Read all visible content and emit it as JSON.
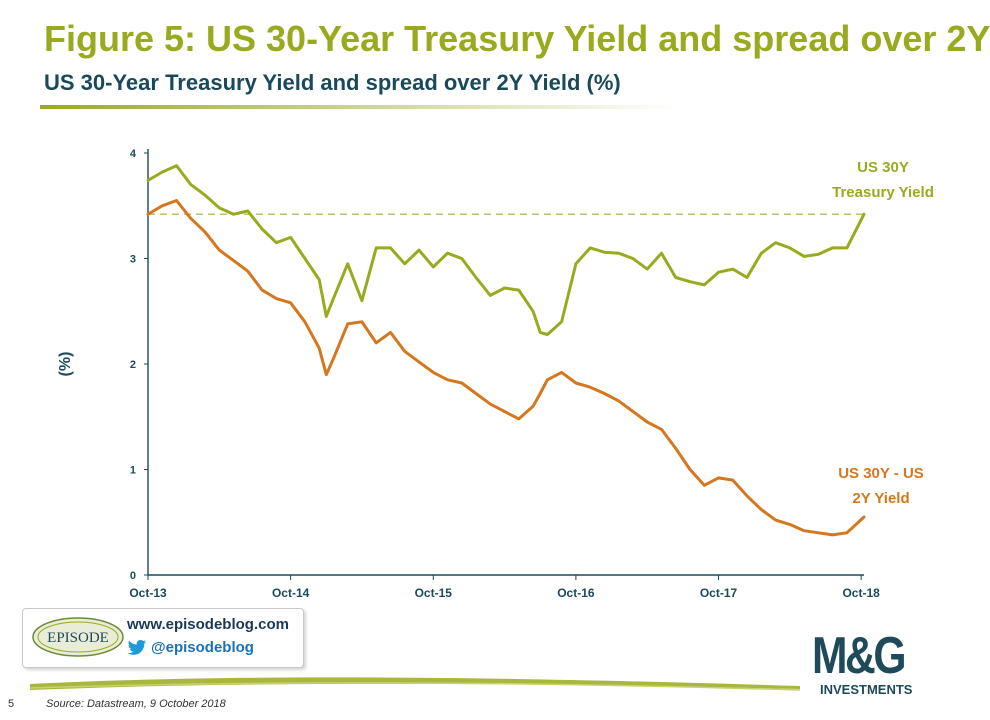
{
  "header": {
    "title": "Figure 5: US 30-Year Treasury Yield and spread over 2Y",
    "subtitle": "US 30-Year Treasury Yield and spread over 2Y Yield (%)"
  },
  "chart_data": {
    "type": "line",
    "ylabel": "(%)",
    "ylim": [
      0,
      4
    ],
    "yticks": [
      "0",
      "1",
      "2",
      "3",
      "4"
    ],
    "xticks": [
      "Oct-13",
      "Oct-14",
      "Oct-15",
      "Oct-16",
      "Oct-17",
      "Oct-18"
    ],
    "x": [
      2013.75,
      2013.85,
      2013.95,
      2014.05,
      2014.15,
      2014.25,
      2014.35,
      2014.45,
      2014.55,
      2014.65,
      2014.75,
      2014.85,
      2014.95,
      2015.0,
      2015.05,
      2015.15,
      2015.25,
      2015.35,
      2015.45,
      2015.55,
      2015.65,
      2015.75,
      2015.85,
      2015.95,
      2016.05,
      2016.15,
      2016.25,
      2016.35,
      2016.45,
      2016.5,
      2016.55,
      2016.65,
      2016.75,
      2016.85,
      2016.95,
      2017.05,
      2017.15,
      2017.25,
      2017.35,
      2017.45,
      2017.55,
      2017.65,
      2017.75,
      2017.85,
      2017.95,
      2018.05,
      2018.15,
      2018.25,
      2018.35,
      2018.45,
      2018.55,
      2018.65,
      2018.77
    ],
    "series": [
      {
        "name": "US 30Y Treasury Yield",
        "color": "#9aaa1f",
        "values": [
          3.74,
          3.82,
          3.88,
          3.7,
          3.6,
          3.48,
          3.42,
          3.45,
          3.28,
          3.15,
          3.2,
          3.0,
          2.8,
          2.45,
          2.62,
          2.95,
          2.6,
          3.1,
          3.1,
          2.95,
          3.08,
          2.92,
          3.05,
          3.0,
          2.82,
          2.65,
          2.72,
          2.7,
          2.5,
          2.3,
          2.28,
          2.4,
          2.95,
          3.1,
          3.06,
          3.05,
          3.0,
          2.9,
          3.05,
          2.82,
          2.78,
          2.75,
          2.87,
          2.9,
          2.82,
          3.05,
          3.15,
          3.1,
          3.02,
          3.04,
          3.1,
          3.1,
          3.42
        ]
      },
      {
        "name": "US 30Y - US 2Y Yield",
        "color": "#d4771f",
        "values": [
          3.42,
          3.5,
          3.55,
          3.38,
          3.25,
          3.08,
          2.98,
          2.88,
          2.7,
          2.62,
          2.58,
          2.4,
          2.15,
          1.9,
          2.05,
          2.38,
          2.4,
          2.2,
          2.3,
          2.12,
          2.02,
          1.92,
          1.85,
          1.82,
          1.72,
          1.62,
          1.55,
          1.48,
          1.6,
          1.72,
          1.85,
          1.92,
          1.82,
          1.78,
          1.72,
          1.65,
          1.55,
          1.45,
          1.38,
          1.2,
          1.0,
          0.85,
          0.92,
          0.9,
          0.75,
          0.62,
          0.52,
          0.48,
          0.42,
          0.4,
          0.38,
          0.4,
          0.55
        ]
      }
    ],
    "reference_line": {
      "value": 3.42,
      "style": "dashed",
      "color": "#b3c66a"
    },
    "annotations": [
      {
        "text": "US 30Y",
        "color": "#9aaa1f"
      },
      {
        "text": "Treasury Yield",
        "color": "#9aaa1f"
      },
      {
        "text": "US 30Y - US",
        "color": "#d4771f"
      },
      {
        "text": "2Y Yield",
        "color": "#d4771f"
      }
    ],
    "grid": false
  },
  "branding": {
    "episode_logo_text": "EPISODE",
    "url": "www.episodeblog.com",
    "twitter_handle": "@episodeblog",
    "twitter_icon": "twitter-bird-icon"
  },
  "mg_logo": {
    "letters": "M&G",
    "investments": "INVESTMENTS"
  },
  "footer": {
    "page_number": "5",
    "source": "Source: Datastream, 9 October 2018"
  },
  "colors": {
    "title": "#9aaa1f",
    "subtitle": "#1a4a5a",
    "axis": "#1a4a5a",
    "brand_dark": "#1f4a5a"
  }
}
